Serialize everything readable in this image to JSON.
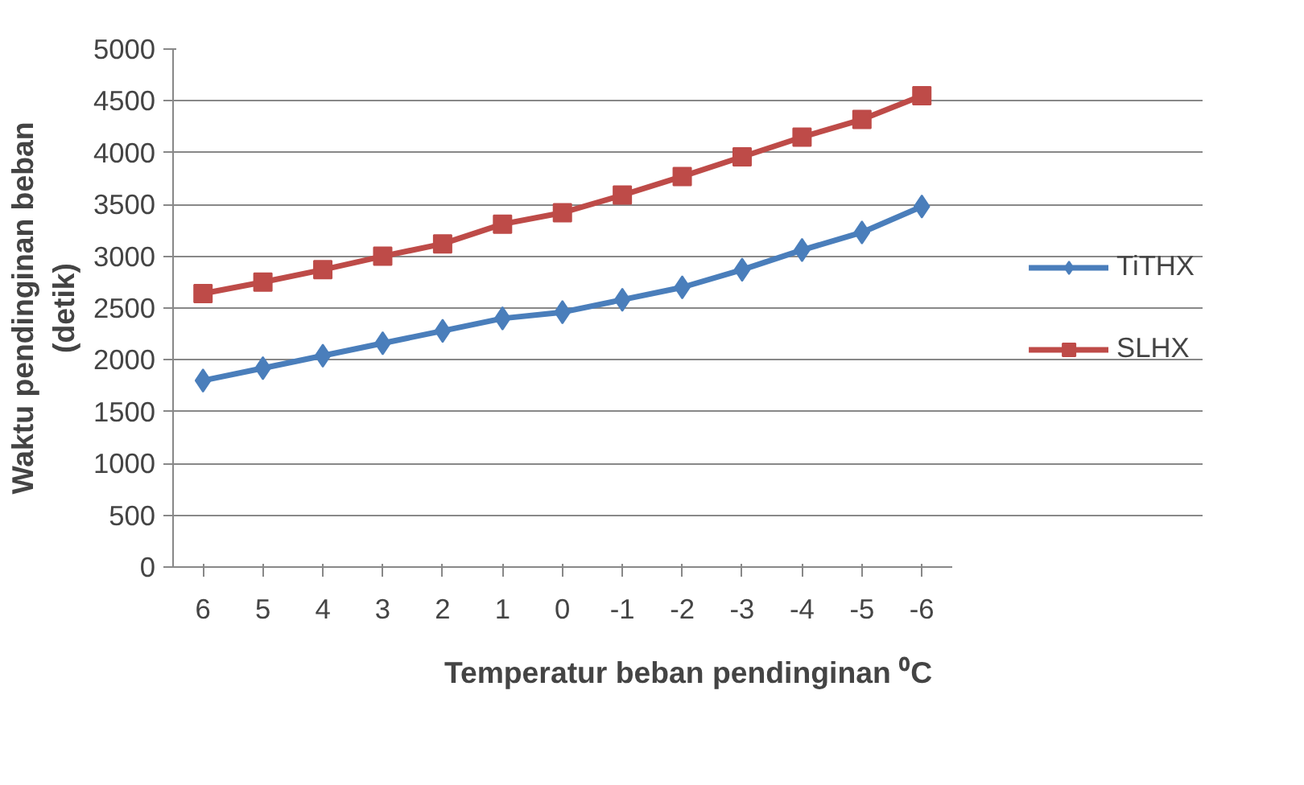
{
  "chart_data": {
    "type": "line",
    "xlabel": "Temperatur beban pendinginan ⁰C",
    "ylabel": "Waktu pendinginan beban\n(detik)",
    "categories": [
      "6",
      "5",
      "4",
      "3",
      "2",
      "1",
      "0",
      "-1",
      "-2",
      "-3",
      "-4",
      "-5",
      "-6"
    ],
    "series": [
      {
        "name": "TiTHX",
        "color": "#4a7ebb",
        "marker": "diamond",
        "values": [
          1800,
          1920,
          2040,
          2160,
          2280,
          2400,
          2460,
          2580,
          2700,
          2870,
          3060,
          3230,
          3480
        ]
      },
      {
        "name": "SLHX",
        "color": "#be4b48",
        "marker": "square",
        "values": [
          2640,
          2750,
          2870,
          3000,
          3120,
          3310,
          3420,
          3590,
          3770,
          3960,
          4150,
          4320,
          4550
        ]
      }
    ],
    "ylim": [
      0,
      5000
    ],
    "yticks": [
      0,
      500,
      1000,
      1500,
      2000,
      2500,
      3000,
      3500,
      4000,
      4500,
      5000
    ],
    "grid": "y",
    "legend": "right",
    "line_style": "solid"
  }
}
